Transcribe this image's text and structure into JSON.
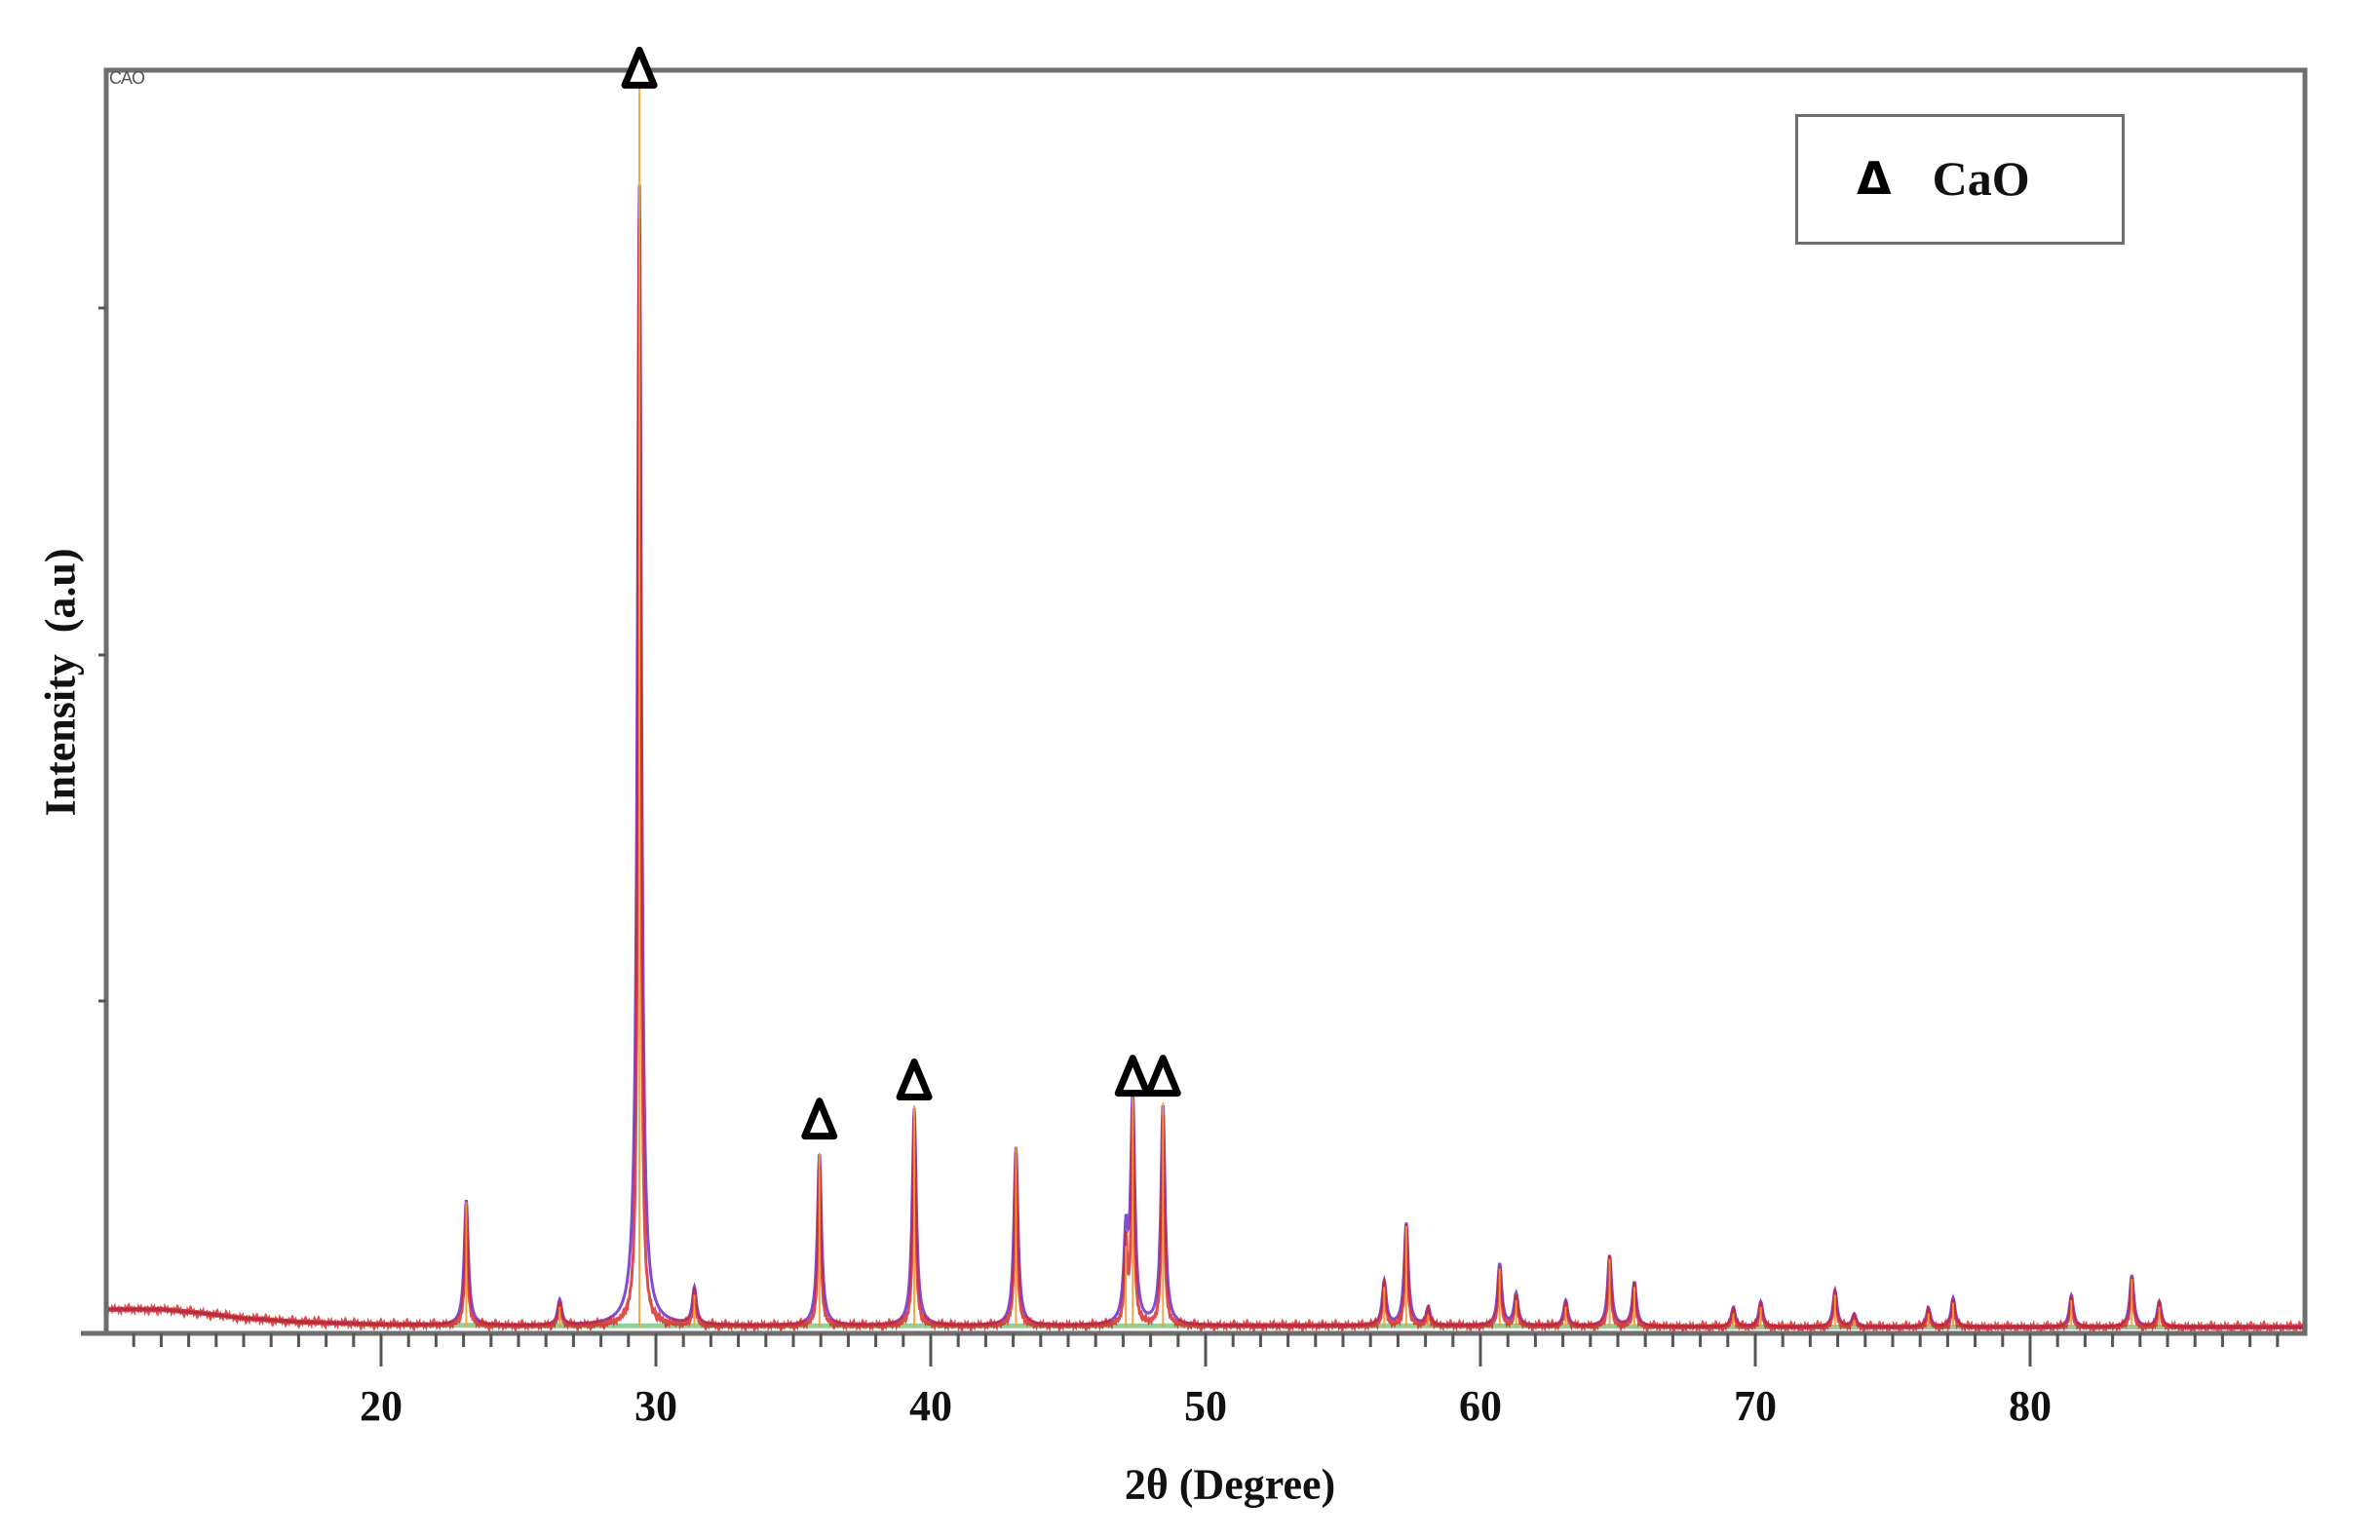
{
  "chart_data": {
    "type": "line",
    "title": "",
    "xlabel": "2θ (Degree)",
    "ylabel": "Intensity  (a.u)",
    "xlim": [
      10,
      90
    ],
    "ylim": [
      0,
      100
    ],
    "x_ticks": [
      20,
      30,
      40,
      50,
      60,
      70,
      80
    ],
    "x_minor_step": 1,
    "y_tick_labels": [],
    "grid": false,
    "corner_label": "CAO",
    "legend": {
      "position": "upper-right",
      "entries": [
        {
          "marker": "Δ",
          "label": "CaO"
        }
      ]
    },
    "colors": {
      "observed": "#d42020",
      "calculated": "#6a2ccf",
      "background": "#6fbf73",
      "reference": "#f0a030",
      "frame": "#6e6e6e"
    },
    "background_curve": [
      [
        10,
        1.9
      ],
      [
        12,
        1.9
      ],
      [
        13.5,
        1.6
      ],
      [
        15,
        1.2
      ],
      [
        17,
        0.9
      ],
      [
        20,
        0.7
      ],
      [
        25,
        0.6
      ],
      [
        30,
        0.6
      ],
      [
        40,
        0.6
      ],
      [
        50,
        0.6
      ],
      [
        60,
        0.6
      ],
      [
        70,
        0.5
      ],
      [
        80,
        0.5
      ],
      [
        90,
        0.5
      ]
    ],
    "peaks": [
      {
        "two_theta": 23.1,
        "intensity": 9.9
      },
      {
        "two_theta": 26.5,
        "intensity": 2.0
      },
      {
        "two_theta": 29.4,
        "intensity": 90.3,
        "reference_intensity": 100
      },
      {
        "two_theta": 31.4,
        "intensity": 2.9
      },
      {
        "two_theta": 35.95,
        "intensity": 13.6
      },
      {
        "two_theta": 39.4,
        "intensity": 17.2
      },
      {
        "two_theta": 43.1,
        "intensity": 14.1
      },
      {
        "two_theta": 47.1,
        "intensity": 6.6
      },
      {
        "two_theta": 47.35,
        "intensity": 17.8
      },
      {
        "two_theta": 48.45,
        "intensity": 17.4
      },
      {
        "two_theta": 56.5,
        "intensity": 3.5
      },
      {
        "two_theta": 57.3,
        "intensity": 8.1
      },
      {
        "two_theta": 58.1,
        "intensity": 1.4
      },
      {
        "two_theta": 60.7,
        "intensity": 4.9
      },
      {
        "two_theta": 61.3,
        "intensity": 2.5
      },
      {
        "two_theta": 63.1,
        "intensity": 2.0
      },
      {
        "two_theta": 64.7,
        "intensity": 5.6
      },
      {
        "two_theta": 65.6,
        "intensity": 3.5
      },
      {
        "two_theta": 69.2,
        "intensity": 1.5
      },
      {
        "two_theta": 70.2,
        "intensity": 2.0
      },
      {
        "two_theta": 72.9,
        "intensity": 2.9
      },
      {
        "two_theta": 73.6,
        "intensity": 1.0
      },
      {
        "two_theta": 76.3,
        "intensity": 1.5
      },
      {
        "two_theta": 77.2,
        "intensity": 2.3
      },
      {
        "two_theta": 81.5,
        "intensity": 2.5
      },
      {
        "two_theta": 83.7,
        "intensity": 4.1
      },
      {
        "two_theta": 84.7,
        "intensity": 2.0
      }
    ],
    "annotations": [
      {
        "marker": "Δ",
        "phase": "CaO",
        "two_theta": 29.4,
        "y": 100.2
      },
      {
        "marker": "Δ",
        "phase": "CaO",
        "two_theta": 35.95,
        "y": 17.0
      },
      {
        "marker": "Δ",
        "phase": "CaO",
        "two_theta": 39.4,
        "y": 20.1
      },
      {
        "marker": "Δ",
        "phase": "CaO",
        "two_theta": 47.35,
        "y": 20.4
      },
      {
        "marker": "Δ",
        "phase": "CaO",
        "two_theta": 48.45,
        "y": 20.4
      }
    ]
  }
}
